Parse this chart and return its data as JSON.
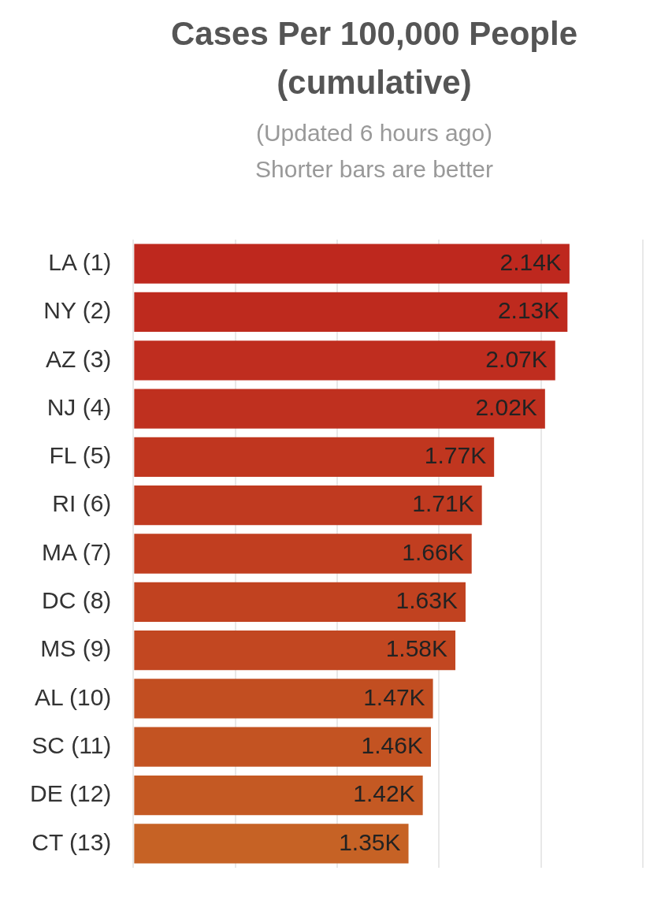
{
  "chart_data": {
    "type": "bar",
    "orientation": "horizontal",
    "title": "Cases Per 100,000 People (cumulative)",
    "subtitle": "(Updated 6 hours ago)\nShorter bars are better",
    "categories": [
      "LA (1)",
      "NY (2)",
      "AZ (3)",
      "NJ (4)",
      "FL (5)",
      "RI (6)",
      "MA (7)",
      "DC (8)",
      "MS (9)",
      "AL (10)",
      "SC (11)",
      "DE (12)",
      "CT (13)"
    ],
    "values": [
      2140,
      2130,
      2070,
      2020,
      1770,
      1710,
      1660,
      1630,
      1580,
      1470,
      1460,
      1420,
      1350
    ],
    "value_labels": [
      "2.14K",
      "2.13K",
      "2.07K",
      "2.02K",
      "1.77K",
      "1.71K",
      "1.66K",
      "1.63K",
      "1.58K",
      "1.47K",
      "1.46K",
      "1.42K",
      "1.35K"
    ],
    "colors": [
      "#be281e",
      "#be2a1e",
      "#bf2d1f",
      "#bf301f",
      "#c0361f",
      "#c03a20",
      "#c13e20",
      "#c14220",
      "#c24721",
      "#c24e21",
      "#c35322",
      "#c45923",
      "#c66225"
    ],
    "xlim": [
      0,
      2500
    ],
    "xticks": [
      {
        "value": 0,
        "label": null
      },
      {
        "value": 500,
        "label": null
      },
      {
        "value": 1000,
        "label": null
      },
      {
        "value": 1500,
        "label": null
      },
      {
        "value": 2000,
        "label": null
      },
      {
        "value": 2500,
        "label": null
      }
    ],
    "grid": "x",
    "tick_labels": "y"
  }
}
